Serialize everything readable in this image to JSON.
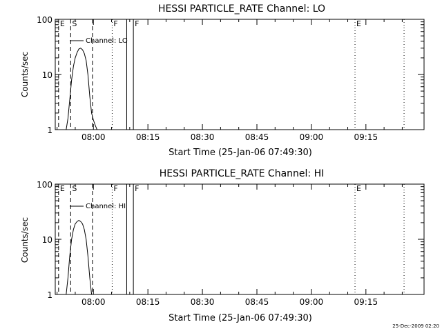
{
  "page": {
    "footer_stamp": "25-Dec-2009 02:20"
  },
  "chart_data": [
    {
      "type": "line",
      "title": "HESSI PARTICLE_RATE Channel: LO",
      "xlabel": "Start Time (25-Jan-06 07:49:30)",
      "ylabel": "Counts/sec",
      "yscale": "log",
      "ylim": [
        1,
        100
      ],
      "xlim": [
        "07:49:30",
        "09:31:00"
      ],
      "x_ticks": [
        "08:00",
        "08:15",
        "08:30",
        "08:45",
        "09:00",
        "09:15"
      ],
      "y_ticks": [
        "1",
        "10",
        "100"
      ],
      "legend": {
        "label": "Channel: LO",
        "placement": "top-left"
      },
      "series": [
        {
          "name": "Channel: LO",
          "x": [
            "07:52:30",
            "07:53:00",
            "07:53:30",
            "07:54:00",
            "07:54:30",
            "07:55:00",
            "07:55:30",
            "07:56:00",
            "07:56:30",
            "07:57:00",
            "07:57:30",
            "07:58:00",
            "07:58:30",
            "07:59:00",
            "07:59:30",
            "08:00:00",
            "08:00:30",
            "08:01:00"
          ],
          "y": [
            1.0,
            1.6,
            3.5,
            8.0,
            14.0,
            20.0,
            25.0,
            29.0,
            30.0,
            28.0,
            24.0,
            18.0,
            10.0,
            4.0,
            2.0,
            1.5,
            1.2,
            1.0
          ]
        }
      ],
      "markers": [
        {
          "time": "07:50:25",
          "label": "E",
          "style": "dashed"
        },
        {
          "time": "07:53:45",
          "label": "S",
          "style": "dashed"
        },
        {
          "time": "07:59:45",
          "label": "",
          "style": "dashed"
        },
        {
          "time": "08:05:10",
          "label": "F",
          "style": "dotted"
        },
        {
          "time": "08:09:10",
          "label": "",
          "style": "solid"
        },
        {
          "time": "08:11:00",
          "label": "F",
          "style": "solid"
        },
        {
          "time": "09:12:00",
          "label": "E",
          "style": "dotted"
        },
        {
          "time": "09:25:30",
          "label": "",
          "style": "dotted"
        }
      ]
    },
    {
      "type": "line",
      "title": "HESSI PARTICLE_RATE Channel: HI",
      "xlabel": "Start Time (25-Jan-06 07:49:30)",
      "ylabel": "Counts/sec",
      "yscale": "log",
      "ylim": [
        1,
        100
      ],
      "xlim": [
        "07:49:30",
        "09:31:00"
      ],
      "x_ticks": [
        "08:00",
        "08:15",
        "08:30",
        "08:45",
        "09:00",
        "09:15"
      ],
      "y_ticks": [
        "1",
        "10",
        "100"
      ],
      "legend": {
        "label": "Channel: HI",
        "placement": "top-left"
      },
      "series": [
        {
          "name": "Channel: HI",
          "x": [
            "07:52:30",
            "07:53:00",
            "07:53:30",
            "07:54:00",
            "07:54:30",
            "07:55:00",
            "07:55:30",
            "07:56:00",
            "07:56:30",
            "07:57:00",
            "07:57:30",
            "07:58:00",
            "07:58:30",
            "07:59:00",
            "07:59:30"
          ],
          "y": [
            1.0,
            2.0,
            5.0,
            10.0,
            15.0,
            19.0,
            21.0,
            22.0,
            21.0,
            19.0,
            15.0,
            10.0,
            5.0,
            2.0,
            1.0
          ]
        }
      ],
      "markers": [
        {
          "time": "07:50:25",
          "label": "E",
          "style": "dashed"
        },
        {
          "time": "07:53:45",
          "label": "S",
          "style": "dashed"
        },
        {
          "time": "07:59:45",
          "label": "",
          "style": "dashed"
        },
        {
          "time": "08:05:10",
          "label": "F",
          "style": "dotted"
        },
        {
          "time": "08:09:10",
          "label": "",
          "style": "solid"
        },
        {
          "time": "08:11:00",
          "label": "F",
          "style": "solid"
        },
        {
          "time": "09:12:00",
          "label": "E",
          "style": "dotted"
        },
        {
          "time": "09:25:30",
          "label": "",
          "style": "dotted"
        }
      ]
    }
  ]
}
